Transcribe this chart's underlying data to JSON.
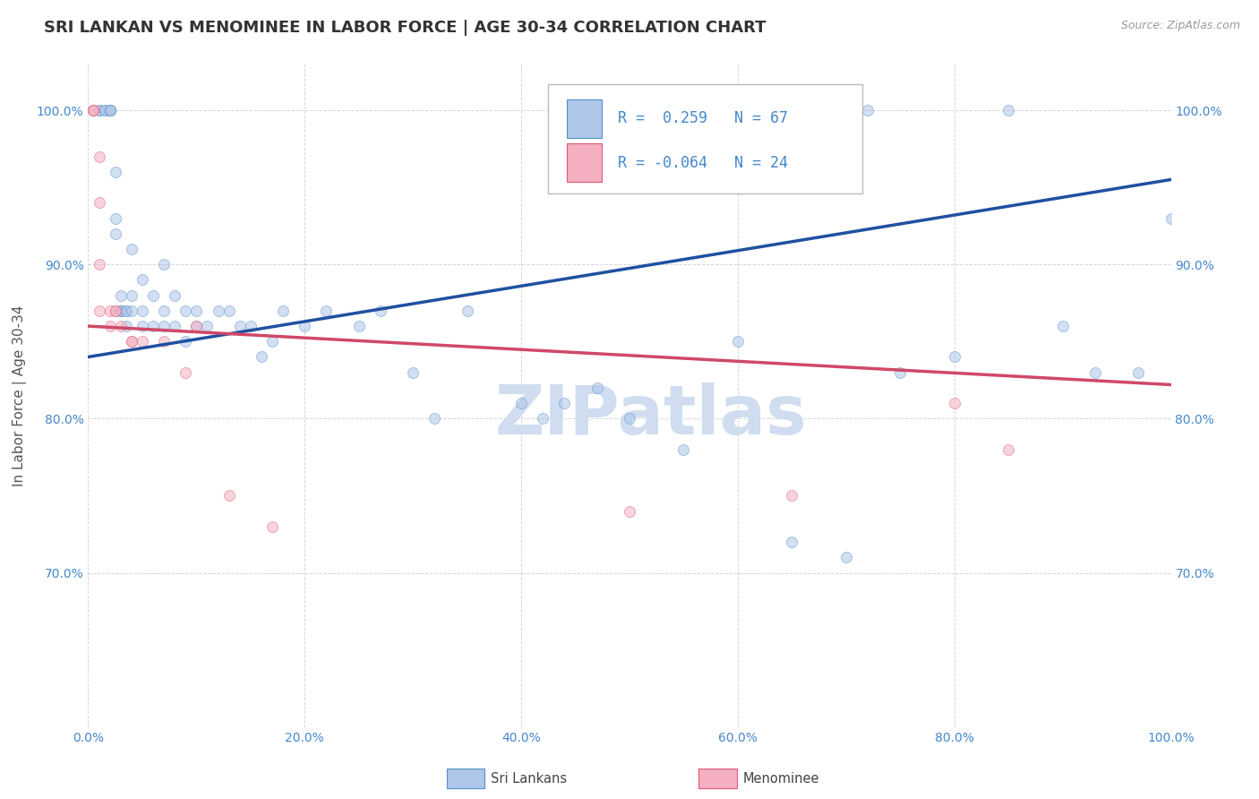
{
  "title": "SRI LANKAN VS MENOMINEE IN LABOR FORCE | AGE 30-34 CORRELATION CHART",
  "source_text": "Source: ZipAtlas.com",
  "ylabel": "In Labor Force | Age 30-34",
  "xlim": [
    0.0,
    1.0
  ],
  "ylim": [
    0.6,
    1.03
  ],
  "xticks": [
    0.0,
    0.2,
    0.4,
    0.6,
    0.8,
    1.0
  ],
  "xticklabels": [
    "0.0%",
    "20.0%",
    "40.0%",
    "60.0%",
    "80.0%",
    "100.0%"
  ],
  "yticks": [
    0.7,
    0.8,
    0.9,
    1.0
  ],
  "yticklabels": [
    "70.0%",
    "80.0%",
    "90.0%",
    "100.0%"
  ],
  "legend_r_blue": "0.259",
  "legend_n_blue": "67",
  "legend_r_pink": "-0.064",
  "legend_n_pink": "24",
  "legend_label_blue": "Sri Lankans",
  "legend_label_pink": "Menominee",
  "blue_color": "#aec6e8",
  "pink_color": "#f4afc0",
  "blue_edge_color": "#5590c8",
  "pink_edge_color": "#e05878",
  "blue_line_color": "#2050a0",
  "pink_line_color": "#d04868",
  "marker_size": 75,
  "marker_alpha": 0.55,
  "blue_x": [
    0.01,
    0.01,
    0.015,
    0.015,
    0.02,
    0.02,
    0.02,
    0.02,
    0.025,
    0.025,
    0.025,
    0.03,
    0.03,
    0.03,
    0.03,
    0.035,
    0.035,
    0.035,
    0.04,
    0.04,
    0.04,
    0.05,
    0.05,
    0.05,
    0.06,
    0.06,
    0.07,
    0.07,
    0.07,
    0.08,
    0.08,
    0.09,
    0.09,
    0.1,
    0.1,
    0.11,
    0.12,
    0.13,
    0.14,
    0.15,
    0.16,
    0.17,
    0.18,
    0.2,
    0.22,
    0.25,
    0.27,
    0.3,
    0.32,
    0.35,
    0.4,
    0.42,
    0.44,
    0.47,
    0.5,
    0.55,
    0.6,
    0.65,
    0.7,
    0.72,
    0.75,
    0.8,
    0.85,
    0.9,
    0.93,
    0.97,
    1.0
  ],
  "blue_y": [
    1.0,
    1.0,
    1.0,
    1.0,
    1.0,
    1.0,
    1.0,
    1.0,
    0.96,
    0.93,
    0.92,
    0.88,
    0.87,
    0.87,
    0.87,
    0.87,
    0.87,
    0.86,
    0.91,
    0.88,
    0.87,
    0.89,
    0.87,
    0.86,
    0.88,
    0.86,
    0.9,
    0.87,
    0.86,
    0.88,
    0.86,
    0.87,
    0.85,
    0.87,
    0.86,
    0.86,
    0.87,
    0.87,
    0.86,
    0.86,
    0.84,
    0.85,
    0.87,
    0.86,
    0.87,
    0.86,
    0.87,
    0.83,
    0.8,
    0.87,
    0.81,
    0.8,
    0.81,
    0.82,
    0.8,
    0.78,
    0.85,
    0.72,
    0.71,
    1.0,
    0.83,
    0.84,
    1.0,
    0.86,
    0.83,
    0.83,
    0.93
  ],
  "pink_x": [
    0.005,
    0.005,
    0.005,
    0.01,
    0.01,
    0.01,
    0.01,
    0.02,
    0.02,
    0.025,
    0.025,
    0.03,
    0.04,
    0.04,
    0.05,
    0.07,
    0.09,
    0.1,
    0.13,
    0.17,
    0.5,
    0.65,
    0.8,
    0.85
  ],
  "pink_y": [
    1.0,
    1.0,
    1.0,
    0.97,
    0.94,
    0.9,
    0.87,
    0.87,
    0.86,
    0.87,
    0.87,
    0.86,
    0.85,
    0.85,
    0.85,
    0.85,
    0.83,
    0.86,
    0.75,
    0.73,
    0.74,
    0.75,
    0.81,
    0.78
  ],
  "blue_trend_x": [
    0.0,
    1.0
  ],
  "blue_trend_y": [
    0.84,
    0.955
  ],
  "pink_trend_x": [
    0.0,
    1.0
  ],
  "pink_trend_y": [
    0.86,
    0.822
  ],
  "watermark": "ZIPatlas",
  "watermark_color": "#d0ddf0",
  "watermark_fontsize": 55,
  "background_color": "#ffffff",
  "grid_color": "#cccccc",
  "title_fontsize": 13,
  "axis_label_fontsize": 11,
  "tick_fontsize": 10,
  "tick_color": "#4488cc"
}
